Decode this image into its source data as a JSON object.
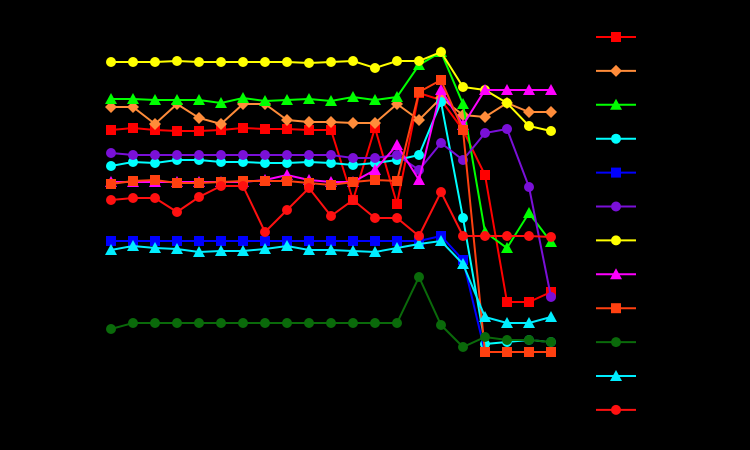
{
  "chart_data": {
    "type": "line",
    "background": "#000000",
    "x": [
      0,
      1,
      2,
      3,
      4,
      5,
      6,
      7,
      8,
      9,
      10,
      11,
      12,
      13,
      14,
      15,
      16,
      17,
      18,
      19,
      20
    ],
    "xlim": [
      0,
      20
    ],
    "ylim": [
      0,
      360
    ],
    "legend": "right",
    "series": [
      {
        "color": "#ff0000",
        "marker": "square",
        "values": [
          270,
          272,
          270,
          269,
          269,
          270,
          272,
          271,
          271,
          270,
          270,
          200,
          272,
          196,
          307,
          300,
          270,
          225,
          98,
          98,
          108
        ]
      },
      {
        "color": "#ff8c3a",
        "marker": "diamond",
        "values": [
          293,
          293,
          276,
          296,
          282,
          276,
          296,
          296,
          280,
          278,
          278,
          277,
          277,
          296,
          280,
          302,
          285,
          283,
          297,
          288,
          288
        ]
      },
      {
        "color": "#00ff00",
        "marker": "triangle",
        "values": [
          301,
          301,
          300,
          300,
          300,
          297,
          302,
          299,
          300,
          301,
          299,
          303,
          300,
          303,
          335,
          348,
          296,
          168,
          152,
          187,
          158
        ]
      },
      {
        "color": "#00ffff",
        "marker": "circle",
        "values": [
          234,
          238,
          237,
          240,
          240,
          238,
          238,
          237,
          237,
          238,
          237,
          235,
          237,
          240,
          245,
          298,
          182,
          56,
          58,
          60,
          58
        ]
      },
      {
        "color": "#0000ff",
        "marker": "square",
        "values": [
          159,
          159,
          159,
          159,
          159,
          159,
          159,
          159,
          159,
          159,
          159,
          159,
          159,
          159,
          159,
          164,
          140,
          48,
          48,
          48,
          48
        ]
      },
      {
        "color": "#7a10d8",
        "marker": "circle",
        "values": [
          247,
          245,
          245,
          245,
          245,
          245,
          245,
          245,
          245,
          245,
          245,
          242,
          242,
          245,
          230,
          257,
          240,
          267,
          271,
          213,
          103
        ]
      },
      {
        "color": "#ffff00",
        "marker": "circle",
        "values": [
          338,
          338,
          338,
          339,
          338,
          338,
          338,
          338,
          338,
          337,
          338,
          339,
          332,
          339,
          339,
          348,
          313,
          310,
          297,
          274,
          269
        ]
      },
      {
        "color": "#ff00ff",
        "marker": "triangle",
        "values": [
          218,
          218,
          218,
          218,
          218,
          218,
          218,
          220,
          225,
          220,
          218,
          218,
          230,
          255,
          220,
          310,
          275,
          310,
          310,
          310,
          310
        ]
      },
      {
        "color": "#ff4010",
        "marker": "square",
        "values": [
          216,
          219,
          220,
          217,
          217,
          218,
          219,
          219,
          219,
          217,
          215,
          218,
          220,
          219,
          308,
          320,
          270,
          48,
          48,
          48,
          48
        ]
      },
      {
        "color": "#0a6a0a",
        "marker": "circle",
        "values": [
          71,
          77,
          77,
          77,
          77,
          77,
          77,
          77,
          77,
          77,
          77,
          77,
          77,
          77,
          123,
          75,
          53,
          63,
          60,
          60,
          58
        ]
      },
      {
        "color": "#00eeff",
        "marker": "triangle",
        "values": [
          150,
          154,
          152,
          151,
          148,
          149,
          149,
          151,
          154,
          150,
          150,
          149,
          148,
          152,
          156,
          159,
          136,
          83,
          77,
          77,
          83
        ]
      },
      {
        "color": "#ff1010",
        "marker": "circle",
        "values": [
          200,
          202,
          202,
          188,
          203,
          214,
          214,
          168,
          190,
          212,
          184,
          200,
          182,
          182,
          164,
          208,
          164,
          164,
          164,
          164,
          163
        ]
      }
    ]
  }
}
